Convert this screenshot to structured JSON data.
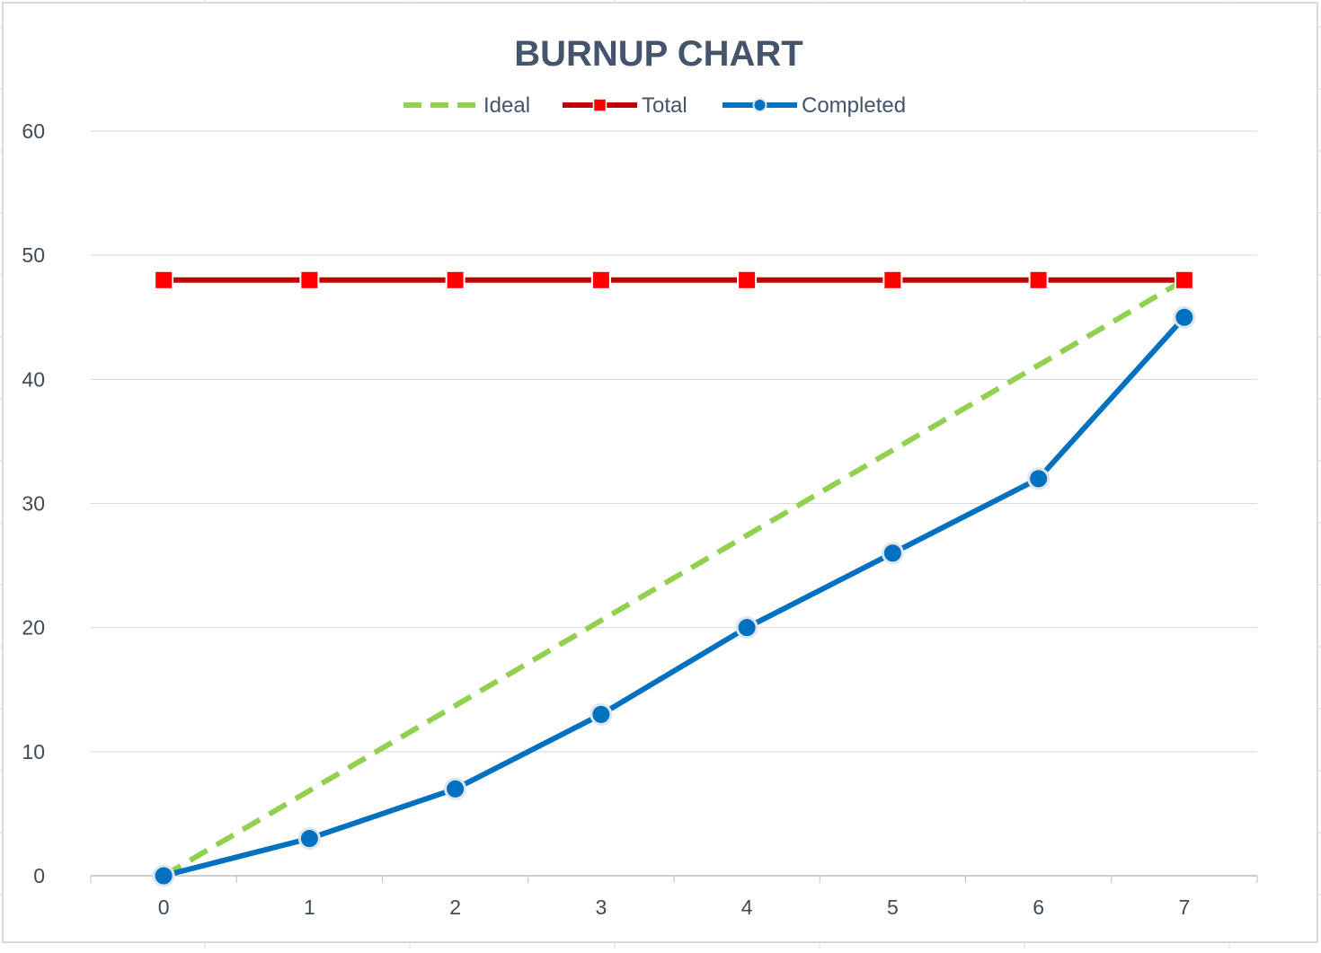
{
  "chart_data": {
    "type": "line",
    "title": "BURNUP CHART",
    "xlabel": "",
    "ylabel": "",
    "x": [
      0,
      1,
      2,
      3,
      4,
      5,
      6,
      7
    ],
    "ylim": [
      0,
      60
    ],
    "yticks": [
      0,
      10,
      20,
      30,
      40,
      50,
      60
    ],
    "grid": true,
    "legend_position": "top",
    "series": [
      {
        "name": "Ideal",
        "color": "#92d050",
        "style": "dashed",
        "marker": "none",
        "values": [
          0,
          6.86,
          13.71,
          20.57,
          27.43,
          34.29,
          41.14,
          48
        ]
      },
      {
        "name": "Total",
        "color": "#c00000",
        "marker_color": "#ff0000",
        "style": "solid",
        "marker": "square",
        "values": [
          48,
          48,
          48,
          48,
          48,
          48,
          48,
          48
        ]
      },
      {
        "name": "Completed",
        "color": "#0070c0",
        "style": "solid",
        "marker": "circle",
        "values": [
          0,
          3,
          7,
          13,
          20,
          26,
          32,
          45
        ]
      }
    ]
  }
}
